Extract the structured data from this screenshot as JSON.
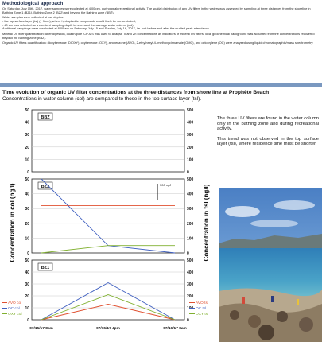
{
  "methods": {
    "title": "Methodological approach",
    "paragraphs": [
      "On Saturday, July 15th, 2017, water samples were collected at 4:00 pm, during peak recreational activity. The spatial distribution of any UV filters in the waters was assessed by sampling at three distances from the shoreline in Bathing Zone 1 (BZ1), Bathing Zone 2 (BZ2) and beyond the Bathing zone (BBZ).",
      "Water samples were collected at two depths:",
      "- the top surface layer (tsl) (~ 1 cm), where hydrophobic compounds would likely be concentrated;",
      "- 40 cm was selected as a constant sampling depth to represent the average water column (col).",
      "Additional samplings were conducted at 8:00 am on Saturday, July 15 and Sunday, July 16, 2017, i.e. just before and after the studied peak attendance.",
      "Mineral UV filter quantification: After digestion, quadrupole ICP-MS was used to analyse Ti and Zn concentrations as indicators of mineral UV filters. local geochemical background was acounted from the concentrations recovered beyond the bathing zone (BBZ).",
      "Organic UV filters quantification: dioxybenzone (DIOXY), oxybenzone (OXY), avobenzone (AVO), 2-ethylhexyl-4- methoxycinnamate (OMC), and octocrylene (OC) were analysed using liquid chromatographic/mass spectrometry."
    ]
  },
  "section": {
    "title": "Time evolution of organic UV filter concentrations at the three distances from shore line at Prophète Beach",
    "subtitle": "Concentrations in water column (col) are compared to those in the top surface layer (tsl)."
  },
  "side_text": [
    "The three UV filters are found in the water column only in the bathing zone and during recreational activity.",
    "This trend was not observed in the top surface layer (tsl), where residence time must be shorter."
  ],
  "colors": {
    "avo": "#e05030",
    "oc": "#4060c0",
    "oxy": "#80b030",
    "divider": "#7a98c0"
  },
  "chart_data": {
    "type": "line",
    "categories": [
      "07/15/17 8am",
      "07/15/17 4pm",
      "07/16/17 8am"
    ],
    "ylabel_left": "Concentration in col (ng/l)",
    "ylabel_right": "Concentration in tsl (ng/l)",
    "ylim_left": [
      0,
      50
    ],
    "ylim_right": [
      0,
      500
    ],
    "yticks_left": [
      "0",
      "10",
      "20",
      "30",
      "40",
      "50"
    ],
    "yticks_right": [
      "0",
      "100",
      "200",
      "300",
      "400",
      "500"
    ],
    "annotation": "300 ng/l",
    "legend_left": [
      "AVO col",
      "OC col",
      "OXY col"
    ],
    "legend_right": [
      "AVO tsl",
      "OC tsl",
      "OXY tsl"
    ],
    "panels": [
      {
        "name": "BBZ",
        "series": []
      },
      {
        "name": "BZ2",
        "series": [
          {
            "name": "AVO tsl",
            "axis": "right",
            "color": "#e05030",
            "values": [
              320,
              320,
              320
            ]
          },
          {
            "name": "OC tsl",
            "axis": "right",
            "color": "#4060c0",
            "values": [
              500,
              50,
              0
            ]
          },
          {
            "name": "OXY tsl",
            "axis": "right",
            "color": "#80b030",
            "values": [
              0,
              50,
              50
            ]
          }
        ]
      },
      {
        "name": "BZ1",
        "series": [
          {
            "name": "AVO col",
            "axis": "left",
            "color": "#e05030",
            "values": [
              0,
              13,
              0
            ]
          },
          {
            "name": "OC col",
            "axis": "left",
            "color": "#4060c0",
            "values": [
              0,
              31,
              0
            ]
          },
          {
            "name": "OXY col",
            "axis": "left",
            "color": "#80b030",
            "values": [
              0,
              21,
              0
            ]
          }
        ]
      }
    ]
  }
}
